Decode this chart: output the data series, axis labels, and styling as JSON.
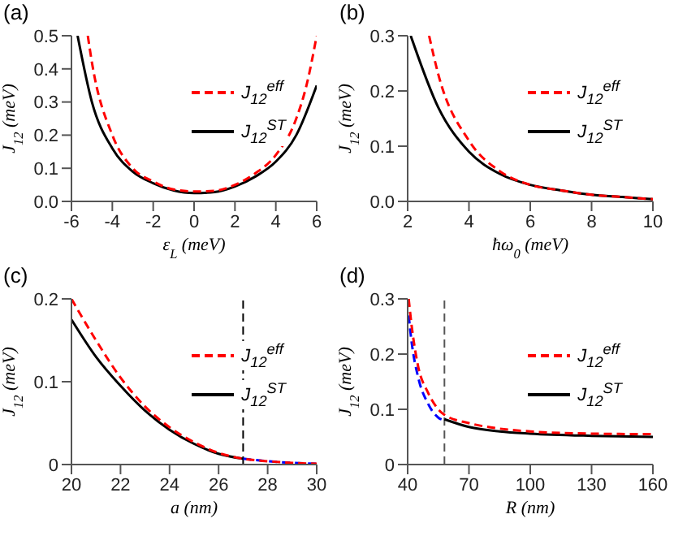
{
  "chart_data": [
    {
      "type": "line",
      "title": "(a)",
      "xlabel": "ε$_{L}$ (meV)",
      "ylabel": "J$_{12}$ (meV)",
      "xlim": [
        -6,
        6
      ],
      "xticks": [
        -6,
        -4,
        -2,
        0,
        2,
        4,
        6
      ],
      "ylim": [
        0,
        0.5
      ],
      "yticks": [
        {
          "value": 0,
          "label": "0.0"
        },
        0.1,
        0.2,
        0.3,
        0.4,
        0.5
      ],
      "legend": "right",
      "grid": false,
      "series": [
        {
          "name": "J$_{12}$$^{eff}$",
          "color": "#ff0000",
          "line_style": "dashed",
          "x": [
            -5.2,
            -5,
            -4,
            -3,
            -2,
            -1,
            0,
            1,
            2,
            3,
            4,
            5,
            5.5,
            6
          ],
          "values": [
            0.5,
            0.42,
            0.2,
            0.1,
            0.06,
            0.036,
            0.03,
            0.032,
            0.05,
            0.085,
            0.14,
            0.25,
            0.35,
            0.5
          ]
        },
        {
          "name": "J$_{12}$$^{ST}$",
          "color": "#000000",
          "line_style": "solid",
          "x": [
            -5.7,
            -5,
            -4,
            -3,
            -2,
            -1,
            0,
            1,
            2,
            3,
            4,
            5,
            6
          ],
          "values": [
            0.5,
            0.3,
            0.16,
            0.09,
            0.055,
            0.033,
            0.025,
            0.028,
            0.045,
            0.075,
            0.12,
            0.2,
            0.35
          ]
        }
      ]
    },
    {
      "type": "line",
      "title": "(b)",
      "xlabel": "ħω$_{0}$ (meV)",
      "ylabel": "J$_{12}$ (meV)",
      "xlim": [
        2,
        10
      ],
      "xticks": [
        2,
        4,
        6,
        8,
        10
      ],
      "ylim": [
        0,
        0.3
      ],
      "yticks": [
        {
          "value": 0,
          "label": "0.0"
        },
        0.1,
        0.2,
        0.3
      ],
      "legend": "right",
      "grid": false,
      "series": [
        {
          "name": "J$_{12}$$^{eff}$",
          "color": "#ff0000",
          "line_style": "dashed",
          "x": [
            2.7,
            3,
            4,
            5,
            6,
            7,
            8,
            9,
            10
          ],
          "values": [
            0.3,
            0.23,
            0.11,
            0.055,
            0.03,
            0.02,
            0.012,
            0.008,
            0.004
          ]
        },
        {
          "name": "J$_{12}$$^{ST}$",
          "color": "#000000",
          "line_style": "solid",
          "x": [
            2.1,
            3,
            4,
            5,
            6,
            7,
            8,
            9,
            10
          ],
          "values": [
            0.3,
            0.17,
            0.09,
            0.05,
            0.03,
            0.02,
            0.012,
            0.008,
            0.004
          ]
        }
      ]
    },
    {
      "type": "line",
      "title": "(c)",
      "xlabel": "a (nm)",
      "ylabel": "J$_{12}$ (meV)",
      "xlim": [
        20,
        30
      ],
      "xticks": [
        20,
        22,
        24,
        26,
        28,
        30
      ],
      "ylim": [
        0,
        0.2
      ],
      "yticks": [
        0,
        0.1,
        0.2
      ],
      "legend": "right",
      "grid": false,
      "ref_lines": [
        {
          "axis": "x",
          "value": 27,
          "color": "#000000",
          "line_style": "dashed"
        }
      ],
      "series": [
        {
          "name": "J$_{12}$$^{eff}$",
          "color": "#ff0000",
          "line_style": "dashed",
          "x": [
            20,
            21,
            22,
            23,
            24,
            25,
            26,
            27,
            28,
            29,
            30
          ],
          "values": [
            0.2,
            0.15,
            0.105,
            0.07,
            0.045,
            0.027,
            0.014,
            0.007,
            0.004,
            0.002,
            0.001
          ]
        },
        {
          "name": "J$_{12}$$^{ST}$",
          "color": "#000000",
          "line_style": "solid",
          "x": [
            20,
            21,
            22,
            23,
            24,
            25,
            26,
            27
          ],
          "values": [
            0.175,
            0.13,
            0.095,
            0.065,
            0.042,
            0.025,
            0.013,
            0.007
          ]
        },
        {
          "color": "#0000ff",
          "line_style": "dashed",
          "x": [
            27,
            28,
            29,
            30
          ],
          "values": [
            0.007,
            0.004,
            0.002,
            0.001
          ]
        }
      ]
    },
    {
      "type": "line",
      "title": "(d)",
      "xlabel": "R (nm)",
      "ylabel": "J$_{12}$ (meV)",
      "xlim": [
        40,
        160
      ],
      "xticks": [
        40,
        70,
        100,
        130,
        160
      ],
      "ylim": [
        0,
        0.3
      ],
      "yticks": [
        0,
        0.1,
        0.2,
        0.3
      ],
      "legend": "right",
      "grid": false,
      "ref_lines": [
        {
          "axis": "x",
          "value": 58,
          "color": "#555555",
          "line_style": "dashed"
        }
      ],
      "series": [
        {
          "name": "J$_{12}$$^{eff}$",
          "color": "#ff0000",
          "line_style": "dashed",
          "x": [
            40.5,
            42,
            45,
            50,
            55,
            58,
            70,
            85,
            100,
            130,
            160
          ],
          "values": [
            0.3,
            0.25,
            0.18,
            0.13,
            0.1,
            0.09,
            0.075,
            0.065,
            0.06,
            0.056,
            0.055
          ]
        },
        {
          "name": "J$_{12}$$^{ST}$",
          "color": "#000000",
          "line_style": "solid",
          "x": [
            58,
            70,
            85,
            100,
            130,
            160
          ],
          "values": [
            0.082,
            0.068,
            0.06,
            0.056,
            0.052,
            0.05
          ]
        },
        {
          "color": "#0000ff",
          "line_style": "dashed",
          "x": [
            40.5,
            42,
            45,
            50,
            55,
            58
          ],
          "values": [
            0.27,
            0.22,
            0.16,
            0.11,
            0.085,
            0.08
          ]
        }
      ]
    }
  ]
}
